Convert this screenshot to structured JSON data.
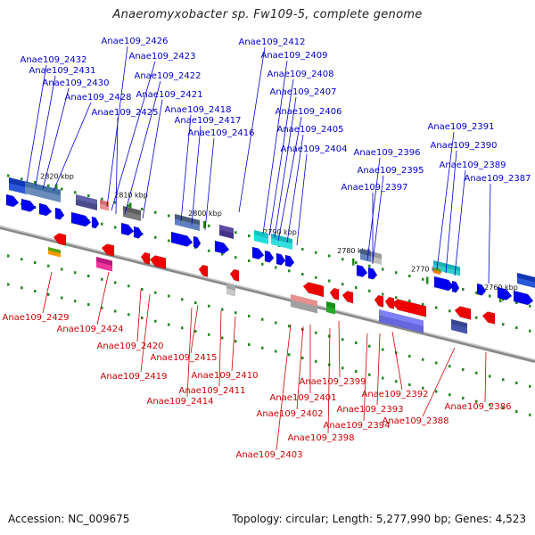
{
  "title": "Anaeromyxobacter sp. Fw109-5, complete genome",
  "footer": {
    "accession": "Accession: NC_009675",
    "summary": "Topology: circular; Length: 5,277,990 bp; Genes: 4,523"
  },
  "colors": {
    "forward_label": "#0000cc",
    "reverse_label": "#cc0000",
    "backbone": "#888888",
    "tick": "#228822"
  },
  "scale_ticks": [
    "2820 kbp",
    "2810 kbp",
    "2800 kbp",
    "2790 kbp",
    "2780 kbp",
    "2770 kbp",
    "2760 kbp"
  ],
  "top_labels": [
    "Anae109_2432",
    "Anae109_2431",
    "Anae109_2430",
    "Anae109_2428",
    "Anae109_2426",
    "Anae109_2423",
    "Anae109_2422",
    "Anae109_2421",
    "Anae109_2425",
    "Anae109_2418",
    "Anae109_2417",
    "Anae109_2416",
    "Anae109_2412",
    "Anae109_2409",
    "Anae109_2408",
    "Anae109_2407",
    "Anae109_2406",
    "Anae109_2405",
    "Anae109_2404",
    "Anae109_2396",
    "Anae109_2395",
    "Anae109_2397",
    "Anae109_2391",
    "Anae109_2390",
    "Anae109_2389",
    "Anae109_2387"
  ],
  "bottom_labels": [
    "Anae109_2429",
    "Anae109_2424",
    "Anae109_2420",
    "Anae109_2419",
    "Anae109_2415",
    "Anae109_2411",
    "Anae109_2414",
    "Anae109_2410",
    "Anae109_2399",
    "Anae109_2401",
    "Anae109_2402",
    "Anae109_2403",
    "Anae109_2398",
    "Anae109_2394",
    "Anae109_2393",
    "Anae109_2392",
    "Anae109_2388",
    "Anae109_2386"
  ]
}
